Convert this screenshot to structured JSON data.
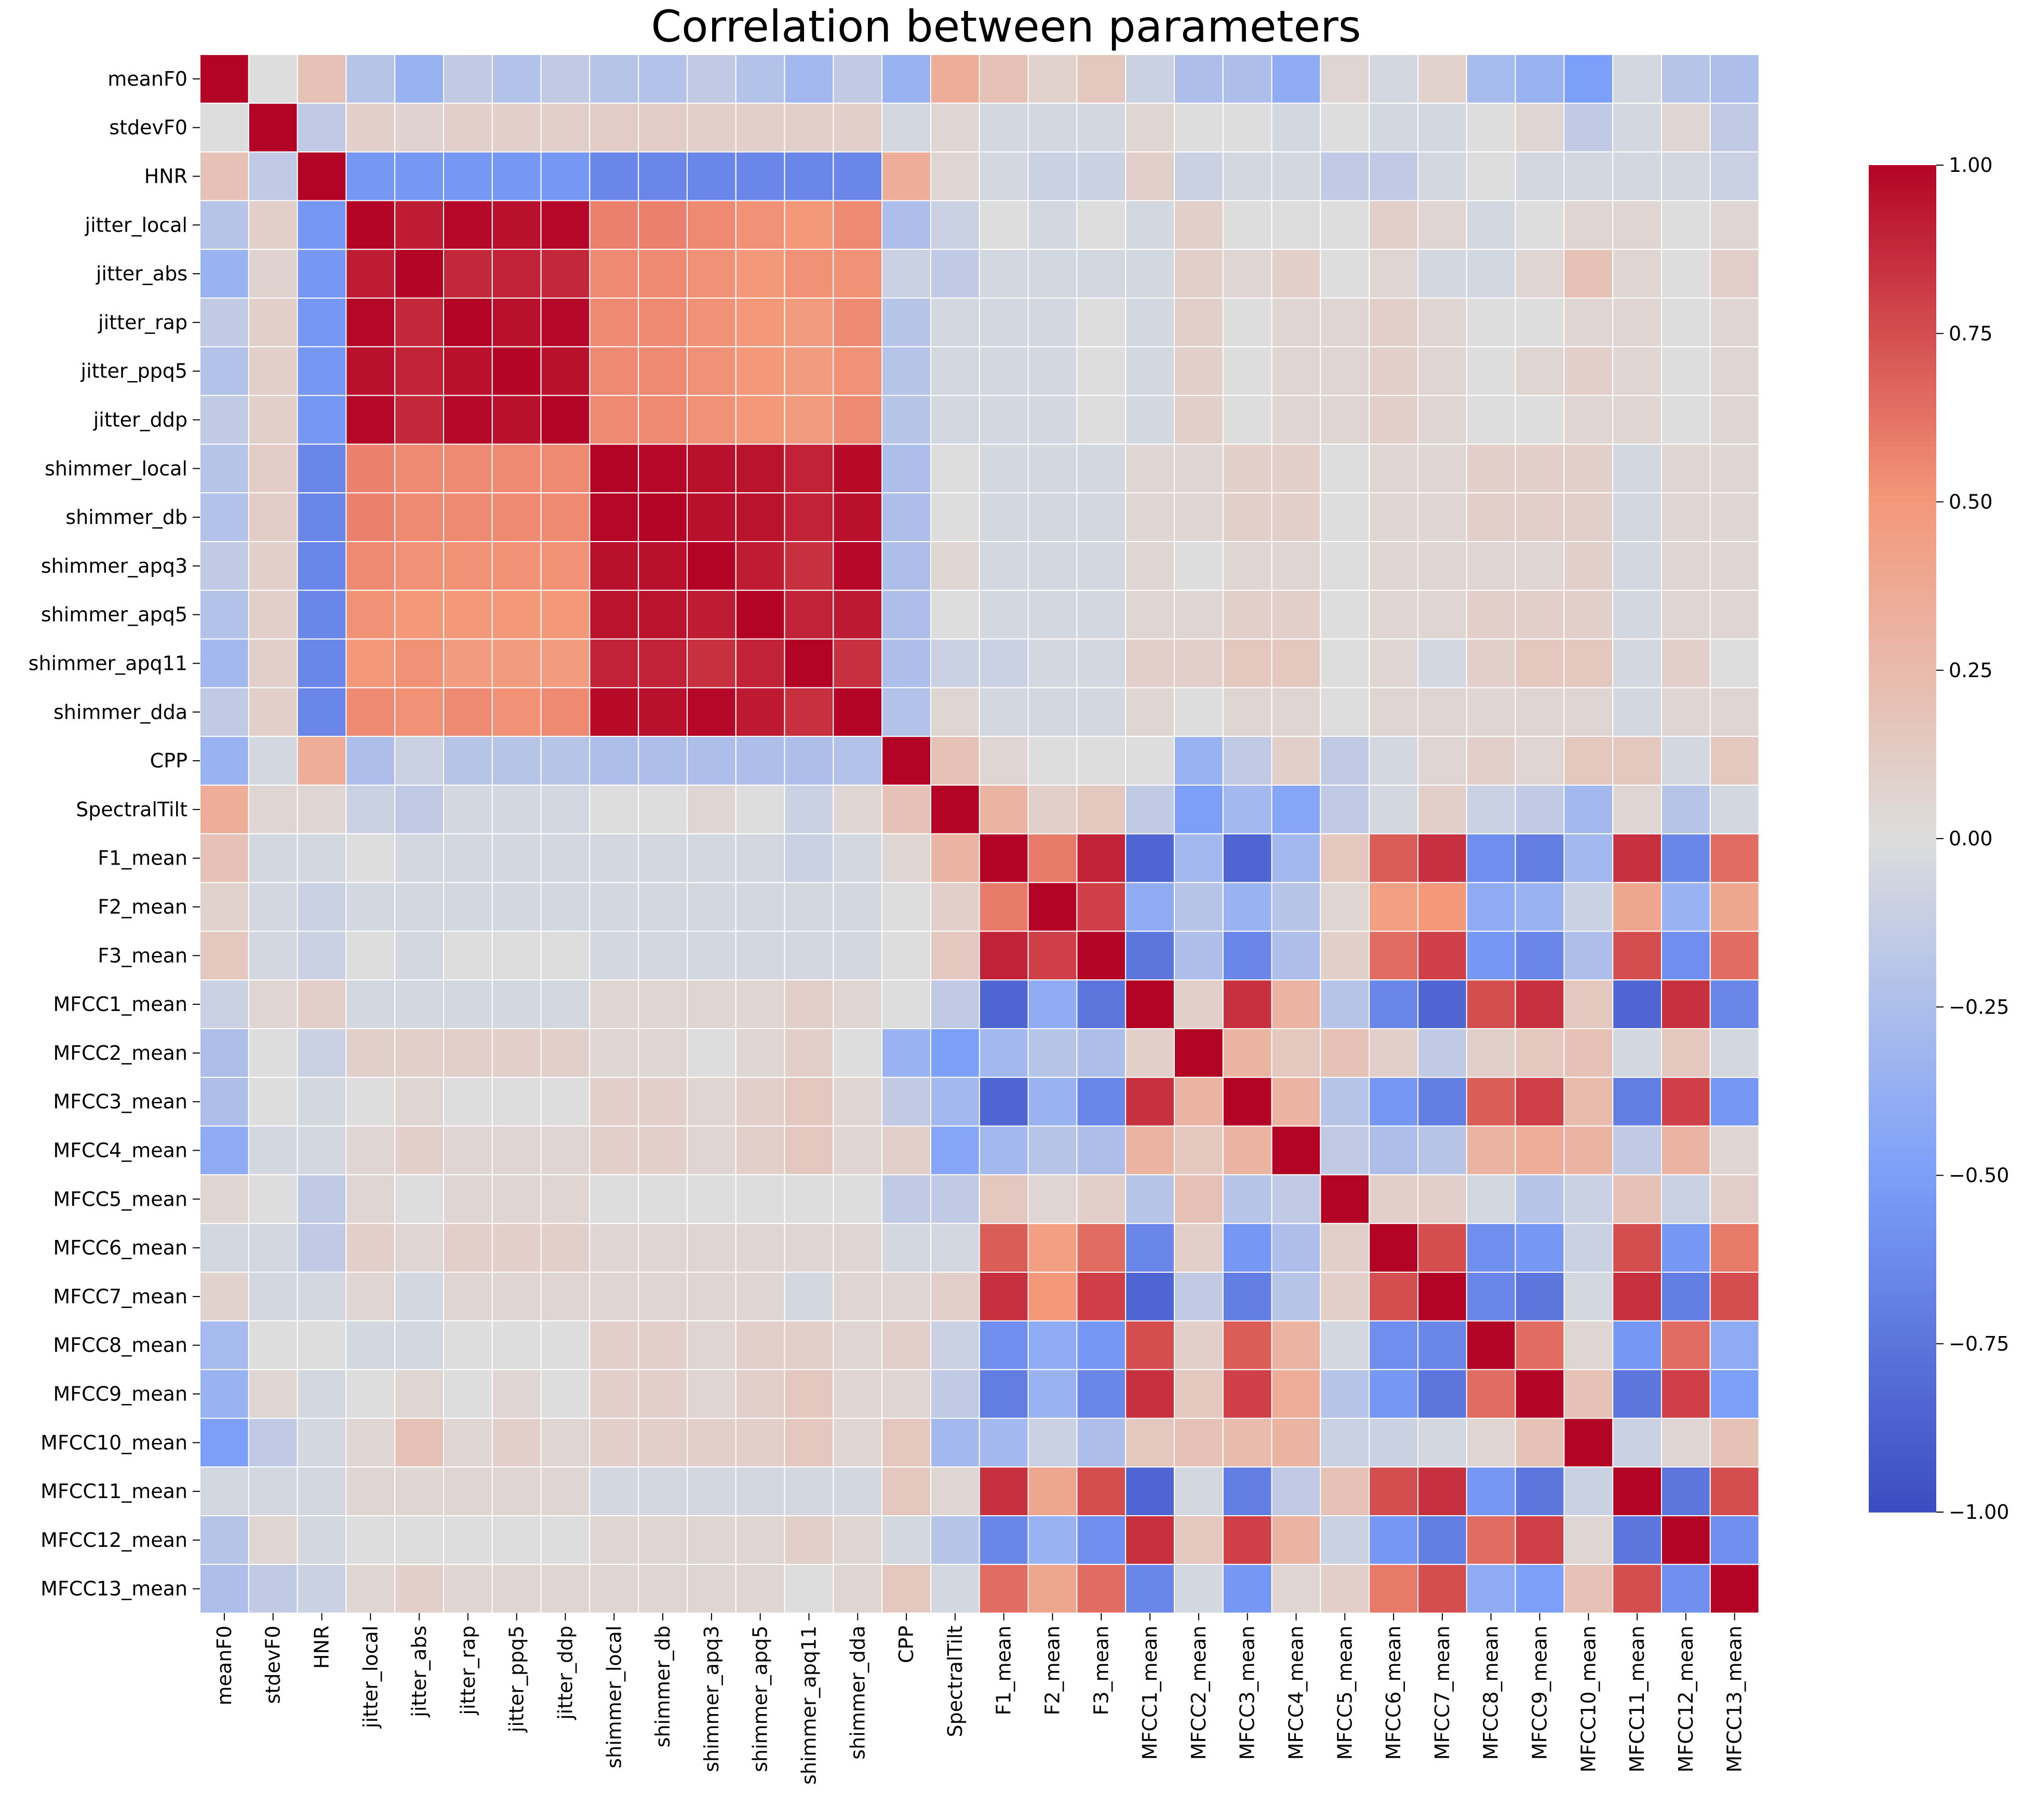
{
  "chart_data": {
    "type": "heatmap",
    "title": "Correlation between parameters",
    "labels": [
      "meanF0",
      "stdevF0",
      "HNR",
      "jitter_local",
      "jitter_abs",
      "jitter_rap",
      "jitter_ppq5",
      "jitter_ddp",
      "shimmer_local",
      "shimmer_db",
      "shimmer_apq3",
      "shimmer_apq5",
      "shimmer_apq11",
      "shimmer_dda",
      "CPP",
      "SpectralTilt",
      "F1_mean",
      "F2_mean",
      "F3_mean",
      "MFCC1_mean",
      "MFCC2_mean",
      "MFCC3_mean",
      "MFCC4_mean",
      "MFCC5_mean",
      "MFCC6_mean",
      "MFCC7_mean",
      "MFCC8_mean",
      "MFCC9_mean",
      "MFCC10_mean",
      "MFCC11_mean",
      "MFCC12_mean",
      "MFCC13_mean"
    ],
    "values": [
      [
        1.0,
        0.0,
        0.2,
        -0.2,
        -0.35,
        -0.15,
        -0.22,
        -0.15,
        -0.2,
        -0.22,
        -0.15,
        -0.22,
        -0.3,
        -0.15,
        -0.35,
        0.35,
        0.2,
        0.08,
        0.15,
        -0.1,
        -0.25,
        -0.25,
        -0.4,
        0.05,
        -0.05,
        0.08,
        -0.28,
        -0.35,
        -0.5,
        -0.05,
        -0.2,
        -0.25
      ],
      [
        0.0,
        1.0,
        -0.15,
        0.1,
        0.07,
        0.1,
        0.1,
        0.1,
        0.12,
        0.12,
        0.1,
        0.1,
        0.1,
        0.1,
        -0.05,
        0.05,
        -0.05,
        -0.05,
        -0.05,
        0.05,
        0.0,
        0.0,
        -0.05,
        0.0,
        -0.05,
        -0.05,
        0.0,
        0.05,
        -0.15,
        -0.05,
        0.05,
        -0.15
      ],
      [
        0.2,
        -0.15,
        1.0,
        -0.55,
        -0.55,
        -0.55,
        -0.55,
        -0.55,
        -0.65,
        -0.65,
        -0.65,
        -0.65,
        -0.65,
        -0.65,
        0.35,
        0.05,
        -0.05,
        -0.1,
        -0.1,
        0.1,
        -0.1,
        -0.05,
        -0.05,
        -0.15,
        -0.15,
        -0.05,
        0.0,
        -0.05,
        -0.05,
        -0.05,
        -0.05,
        -0.1
      ],
      [
        -0.2,
        0.1,
        -0.55,
        1.0,
        0.92,
        0.99,
        0.96,
        0.99,
        0.58,
        0.58,
        0.55,
        0.52,
        0.5,
        0.55,
        -0.25,
        -0.1,
        0.0,
        -0.05,
        0.0,
        -0.05,
        0.1,
        0.0,
        0.0,
        0.0,
        0.1,
        0.05,
        -0.05,
        0.0,
        0.05,
        0.05,
        0.0,
        0.05
      ],
      [
        -0.35,
        0.07,
        -0.55,
        0.92,
        1.0,
        0.88,
        0.9,
        0.88,
        0.55,
        0.55,
        0.52,
        0.5,
        0.52,
        0.52,
        -0.1,
        -0.15,
        -0.05,
        -0.05,
        -0.05,
        -0.05,
        0.1,
        0.05,
        0.1,
        0.0,
        0.05,
        -0.05,
        -0.05,
        0.05,
        0.2,
        0.05,
        0.0,
        0.1
      ],
      [
        -0.15,
        0.1,
        -0.55,
        0.99,
        0.88,
        1.0,
        0.96,
        0.99,
        0.55,
        0.55,
        0.52,
        0.5,
        0.48,
        0.55,
        -0.2,
        -0.05,
        -0.05,
        -0.05,
        0.0,
        -0.05,
        0.1,
        0.0,
        0.05,
        0.05,
        0.1,
        0.05,
        0.0,
        0.0,
        0.05,
        0.05,
        0.0,
        0.05
      ],
      [
        -0.22,
        0.1,
        -0.55,
        0.96,
        0.9,
        0.96,
        1.0,
        0.96,
        0.55,
        0.55,
        0.52,
        0.5,
        0.48,
        0.52,
        -0.2,
        -0.05,
        -0.05,
        -0.05,
        0.0,
        -0.05,
        0.1,
        0.0,
        0.05,
        0.05,
        0.1,
        0.05,
        0.0,
        0.05,
        0.1,
        0.05,
        0.0,
        0.05
      ],
      [
        -0.15,
        0.1,
        -0.55,
        0.99,
        0.88,
        0.99,
        0.96,
        1.0,
        0.55,
        0.55,
        0.52,
        0.5,
        0.48,
        0.55,
        -0.2,
        -0.05,
        -0.05,
        -0.05,
        0.0,
        -0.05,
        0.1,
        0.0,
        0.05,
        0.05,
        0.1,
        0.05,
        0.0,
        0.0,
        0.05,
        0.05,
        0.0,
        0.05
      ],
      [
        -0.2,
        0.12,
        -0.65,
        0.58,
        0.55,
        0.55,
        0.55,
        0.55,
        1.0,
        0.99,
        0.96,
        0.95,
        0.9,
        0.98,
        -0.25,
        0.0,
        -0.05,
        -0.05,
        -0.05,
        0.05,
        0.05,
        0.1,
        0.1,
        0.0,
        0.05,
        0.05,
        0.1,
        0.1,
        0.1,
        -0.05,
        0.05,
        0.05
      ],
      [
        -0.22,
        0.12,
        -0.65,
        0.58,
        0.55,
        0.55,
        0.55,
        0.55,
        0.99,
        1.0,
        0.96,
        0.95,
        0.9,
        0.96,
        -0.25,
        0.0,
        -0.05,
        -0.05,
        -0.05,
        0.05,
        0.05,
        0.1,
        0.1,
        0.0,
        0.05,
        0.05,
        0.1,
        0.1,
        0.1,
        -0.05,
        0.05,
        0.05
      ],
      [
        -0.15,
        0.1,
        -0.65,
        0.55,
        0.52,
        0.52,
        0.52,
        0.52,
        0.96,
        0.96,
        1.0,
        0.92,
        0.85,
        0.99,
        -0.25,
        0.05,
        -0.05,
        -0.05,
        -0.05,
        0.05,
        0.0,
        0.05,
        0.05,
        0.0,
        0.05,
        0.05,
        0.05,
        0.05,
        0.1,
        -0.05,
        0.05,
        0.05
      ],
      [
        -0.22,
        0.1,
        -0.65,
        0.52,
        0.5,
        0.5,
        0.5,
        0.5,
        0.95,
        0.95,
        0.92,
        1.0,
        0.9,
        0.93,
        -0.25,
        0.0,
        -0.05,
        -0.05,
        -0.05,
        0.05,
        0.05,
        0.1,
        0.1,
        0.0,
        0.05,
        0.05,
        0.1,
        0.1,
        0.1,
        -0.05,
        0.05,
        0.05
      ],
      [
        -0.3,
        0.1,
        -0.65,
        0.5,
        0.52,
        0.48,
        0.48,
        0.48,
        0.9,
        0.9,
        0.85,
        0.9,
        1.0,
        0.85,
        -0.25,
        -0.1,
        -0.1,
        -0.05,
        -0.05,
        0.1,
        0.1,
        0.15,
        0.15,
        0.0,
        0.05,
        -0.05,
        0.1,
        0.15,
        0.15,
        -0.05,
        0.1,
        0.0
      ],
      [
        -0.15,
        0.1,
        -0.65,
        0.55,
        0.52,
        0.55,
        0.52,
        0.55,
        0.98,
        0.96,
        0.99,
        0.93,
        0.85,
        1.0,
        -0.22,
        0.05,
        -0.05,
        -0.05,
        -0.05,
        0.05,
        0.0,
        0.05,
        0.05,
        0.0,
        0.05,
        0.05,
        0.05,
        0.05,
        0.05,
        -0.05,
        0.05,
        0.05
      ],
      [
        -0.35,
        -0.05,
        0.35,
        -0.25,
        -0.1,
        -0.2,
        -0.2,
        -0.2,
        -0.25,
        -0.25,
        -0.25,
        -0.25,
        -0.25,
        -0.22,
        1.0,
        0.2,
        0.05,
        0.0,
        0.0,
        0.0,
        -0.35,
        -0.15,
        0.1,
        -0.15,
        -0.05,
        0.05,
        0.1,
        0.05,
        0.15,
        0.15,
        -0.05,
        0.15
      ],
      [
        0.35,
        0.05,
        0.05,
        -0.1,
        -0.15,
        -0.05,
        -0.05,
        -0.05,
        0.0,
        0.0,
        0.05,
        0.0,
        -0.1,
        0.05,
        0.2,
        1.0,
        0.3,
        0.1,
        0.15,
        -0.15,
        -0.5,
        -0.3,
        -0.45,
        -0.15,
        -0.05,
        0.1,
        -0.1,
        -0.15,
        -0.3,
        0.05,
        -0.2,
        -0.05
      ],
      [
        0.2,
        -0.05,
        -0.05,
        0.0,
        -0.05,
        -0.05,
        -0.05,
        -0.05,
        -0.05,
        -0.05,
        -0.05,
        -0.05,
        -0.1,
        -0.05,
        0.05,
        0.3,
        1.0,
        0.6,
        0.9,
        -0.85,
        -0.3,
        -0.85,
        -0.3,
        0.15,
        0.7,
        0.85,
        -0.6,
        -0.7,
        -0.3,
        0.85,
        -0.65,
        0.65
      ],
      [
        0.08,
        -0.05,
        -0.1,
        -0.05,
        -0.05,
        -0.05,
        -0.05,
        -0.05,
        -0.05,
        -0.05,
        -0.05,
        -0.05,
        -0.05,
        -0.05,
        0.0,
        0.1,
        0.6,
        1.0,
        0.8,
        -0.4,
        -0.2,
        -0.35,
        -0.2,
        0.05,
        0.45,
        0.5,
        -0.4,
        -0.35,
        -0.1,
        0.4,
        -0.35,
        0.4
      ],
      [
        0.15,
        -0.05,
        -0.1,
        0.0,
        -0.05,
        0.0,
        0.0,
        0.0,
        -0.05,
        -0.05,
        -0.05,
        -0.05,
        -0.05,
        -0.05,
        0.0,
        0.15,
        0.9,
        0.8,
        1.0,
        -0.75,
        -0.25,
        -0.65,
        -0.25,
        0.1,
        0.65,
        0.8,
        -0.55,
        -0.65,
        -0.25,
        0.75,
        -0.6,
        0.65
      ],
      [
        -0.1,
        0.05,
        0.1,
        -0.05,
        -0.05,
        -0.05,
        -0.05,
        -0.05,
        0.05,
        0.05,
        0.05,
        0.05,
        0.1,
        0.05,
        0.0,
        -0.15,
        -0.85,
        -0.4,
        -0.75,
        1.0,
        0.1,
        0.85,
        0.3,
        -0.2,
        -0.65,
        -0.85,
        0.75,
        0.85,
        0.15,
        -0.85,
        0.85,
        -0.65
      ],
      [
        -0.25,
        0.0,
        -0.1,
        0.1,
        0.1,
        0.1,
        0.1,
        0.1,
        0.05,
        0.05,
        0.0,
        0.05,
        0.1,
        0.0,
        -0.35,
        -0.5,
        -0.3,
        -0.2,
        -0.25,
        0.1,
        1.0,
        0.3,
        0.15,
        0.2,
        0.1,
        -0.15,
        0.1,
        0.15,
        0.2,
        -0.05,
        0.15,
        -0.05
      ],
      [
        -0.25,
        0.0,
        -0.05,
        0.0,
        0.05,
        0.0,
        0.0,
        0.0,
        0.1,
        0.1,
        0.05,
        0.1,
        0.15,
        0.05,
        -0.15,
        -0.3,
        -0.85,
        -0.35,
        -0.65,
        0.85,
        0.3,
        1.0,
        0.3,
        -0.2,
        -0.55,
        -0.7,
        0.7,
        0.8,
        0.25,
        -0.7,
        0.8,
        -0.55
      ],
      [
        -0.4,
        -0.05,
        -0.05,
        0.05,
        0.1,
        0.05,
        0.05,
        0.05,
        0.1,
        0.1,
        0.05,
        0.1,
        0.15,
        0.05,
        0.1,
        -0.45,
        -0.3,
        -0.2,
        -0.25,
        0.3,
        0.15,
        0.3,
        1.0,
        -0.15,
        -0.25,
        -0.2,
        0.3,
        0.35,
        0.3,
        -0.15,
        0.3,
        0.05
      ],
      [
        0.05,
        0.0,
        -0.15,
        0.05,
        0.0,
        0.05,
        0.05,
        0.05,
        0.0,
        0.0,
        0.0,
        0.0,
        0.0,
        0.0,
        -0.15,
        -0.15,
        0.15,
        0.05,
        0.1,
        -0.2,
        0.2,
        -0.2,
        -0.15,
        1.0,
        0.1,
        0.1,
        -0.05,
        -0.2,
        -0.1,
        0.2,
        -0.1,
        0.1
      ],
      [
        -0.05,
        -0.05,
        -0.15,
        0.1,
        0.05,
        0.1,
        0.1,
        0.1,
        0.05,
        0.05,
        0.05,
        0.05,
        0.05,
        0.05,
        -0.05,
        -0.05,
        0.7,
        0.45,
        0.65,
        -0.65,
        0.1,
        -0.55,
        -0.25,
        0.1,
        1.0,
        0.75,
        -0.6,
        -0.55,
        -0.1,
        0.75,
        -0.55,
        0.6
      ],
      [
        0.08,
        -0.05,
        -0.05,
        0.05,
        -0.05,
        0.05,
        0.05,
        0.05,
        0.05,
        0.05,
        0.05,
        0.05,
        -0.05,
        0.05,
        0.05,
        0.1,
        0.85,
        0.5,
        0.8,
        -0.85,
        -0.15,
        -0.7,
        -0.2,
        0.1,
        0.75,
        1.0,
        -0.65,
        -0.75,
        -0.05,
        0.85,
        -0.7,
        0.75
      ],
      [
        -0.28,
        0.0,
        0.0,
        -0.05,
        -0.05,
        0.0,
        0.0,
        0.0,
        0.1,
        0.1,
        0.05,
        0.1,
        0.1,
        0.05,
        0.1,
        -0.1,
        -0.6,
        -0.4,
        -0.55,
        0.75,
        0.1,
        0.7,
        0.3,
        -0.05,
        -0.6,
        -0.65,
        1.0,
        0.65,
        0.05,
        -0.55,
        0.65,
        -0.4
      ],
      [
        -0.35,
        0.05,
        -0.05,
        0.0,
        0.05,
        0.0,
        0.05,
        0.0,
        0.1,
        0.1,
        0.05,
        0.1,
        0.15,
        0.05,
        0.05,
        -0.15,
        -0.7,
        -0.35,
        -0.65,
        0.85,
        0.15,
        0.8,
        0.35,
        -0.2,
        -0.55,
        -0.75,
        0.65,
        1.0,
        0.2,
        -0.75,
        0.8,
        -0.5
      ],
      [
        -0.5,
        -0.15,
        -0.05,
        0.05,
        0.2,
        0.05,
        0.1,
        0.05,
        0.1,
        0.1,
        0.1,
        0.1,
        0.15,
        0.05,
        0.15,
        -0.3,
        -0.3,
        -0.1,
        -0.25,
        0.15,
        0.2,
        0.25,
        0.3,
        -0.1,
        -0.1,
        -0.05,
        0.05,
        0.2,
        1.0,
        -0.1,
        0.05,
        0.2
      ],
      [
        -0.05,
        -0.05,
        -0.05,
        0.05,
        0.05,
        0.05,
        0.05,
        0.05,
        -0.05,
        -0.05,
        -0.05,
        -0.05,
        -0.05,
        -0.05,
        0.15,
        0.05,
        0.85,
        0.4,
        0.75,
        -0.85,
        -0.05,
        -0.7,
        -0.15,
        0.2,
        0.75,
        0.85,
        -0.55,
        -0.75,
        -0.1,
        1.0,
        -0.75,
        0.75
      ],
      [
        -0.2,
        0.05,
        -0.05,
        0.0,
        0.0,
        0.0,
        0.0,
        0.0,
        0.05,
        0.05,
        0.05,
        0.05,
        0.1,
        0.05,
        -0.05,
        -0.2,
        -0.65,
        -0.35,
        -0.6,
        0.85,
        0.15,
        0.8,
        0.3,
        -0.1,
        -0.55,
        -0.7,
        0.65,
        0.8,
        0.05,
        -0.75,
        1.0,
        -0.6
      ],
      [
        -0.25,
        -0.15,
        -0.1,
        0.05,
        0.1,
        0.05,
        0.05,
        0.05,
        0.05,
        0.05,
        0.05,
        0.05,
        0.0,
        0.05,
        0.15,
        -0.05,
        0.65,
        0.4,
        0.65,
        -0.65,
        -0.05,
        -0.55,
        0.05,
        0.1,
        0.6,
        0.75,
        -0.4,
        -0.5,
        0.2,
        0.75,
        -0.6,
        1.0
      ]
    ],
    "colorbar": {
      "range": [
        -1.0,
        1.0
      ],
      "ticks": [
        "1.00",
        "0.75",
        "0.50",
        "0.25",
        "0.00",
        "−0.25",
        "−0.50",
        "−0.75",
        "−1.00"
      ],
      "colormap": "coolwarm",
      "low_color": "#3b4cc0",
      "mid_color": "#dddddd",
      "high_color": "#b40426"
    }
  }
}
